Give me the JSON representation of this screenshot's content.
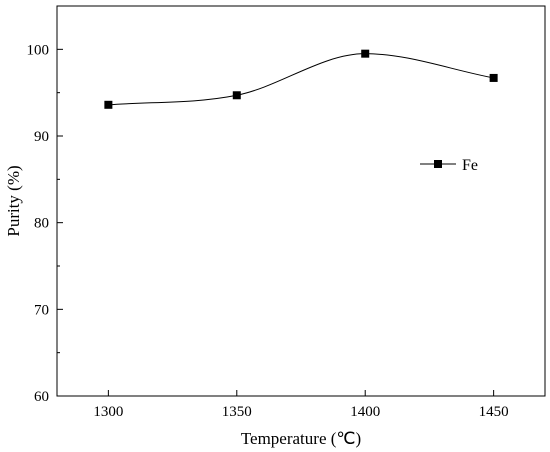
{
  "chart_data": {
    "type": "line",
    "title": "",
    "xlabel": "Temperature (℃)",
    "ylabel": "Purity (%)",
    "xlim": [
      1280,
      1470
    ],
    "ylim": [
      60,
      105
    ],
    "x_ticks": [
      "1300",
      "1350",
      "1400",
      "1450"
    ],
    "y_ticks": [
      "60",
      "70",
      "80",
      "90",
      "100"
    ],
    "grid": false,
    "legend_position": "right",
    "series": [
      {
        "name": "Fe",
        "x": [
          1300,
          1350,
          1400,
          1450
        ],
        "values": [
          93.6,
          94.7,
          99.5,
          96.7
        ],
        "color": "#000000",
        "marker": "square",
        "line": "smooth"
      }
    ]
  }
}
